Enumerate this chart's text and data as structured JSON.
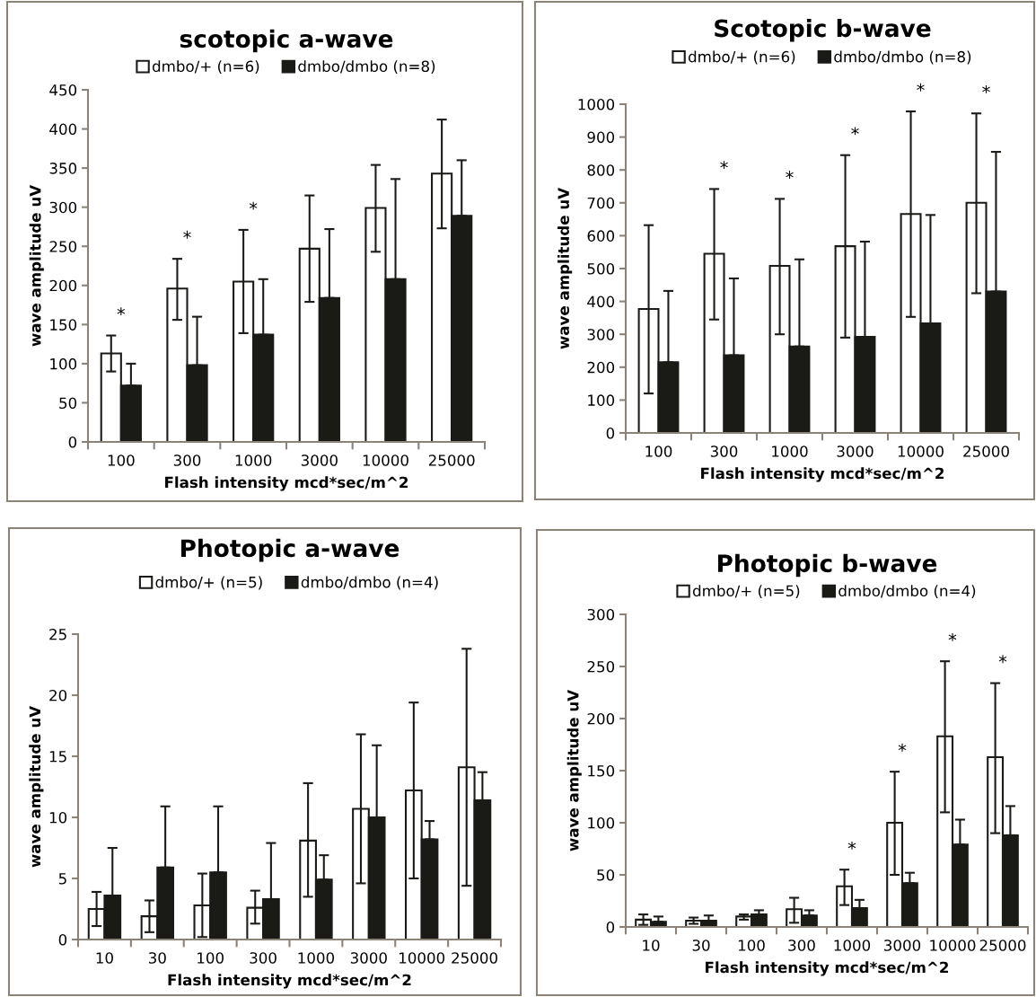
{
  "chart_data": [
    {
      "type": "bar",
      "title": "scotopic a-wave",
      "xlabel": "Flash intensity mcd*sec/m^2",
      "ylabel": "wave amplitude uV",
      "categories": [
        "100",
        "300",
        "1000",
        "3000",
        "10000",
        "25000"
      ],
      "ylim": [
        0,
        450
      ],
      "yticks": [
        0,
        50,
        100,
        150,
        200,
        250,
        300,
        350,
        400,
        450
      ],
      "grid": false,
      "legend": "top",
      "series": [
        {
          "name": "dmbo/+ (n=6)",
          "color": "#ffffff",
          "values": [
            113,
            196,
            205,
            247,
            299,
            343
          ],
          "errors": [
            [
              90,
              136
            ],
            [
              156,
              234
            ],
            [
              139,
              271
            ],
            [
              179,
              315
            ],
            [
              243,
              354
            ],
            [
              273,
              412
            ]
          ]
        },
        {
          "name": "dmbo/dmbo (n=8)",
          "color": "#1a1a17",
          "values": [
            72,
            98,
            137,
            184,
            208,
            289
          ],
          "errors": [
            [
              72,
              100
            ],
            [
              98,
              160
            ],
            [
              137,
              208
            ],
            [
              184,
              272
            ],
            [
              208,
              336
            ],
            [
              289,
              360
            ]
          ]
        }
      ],
      "annotations": [
        "*",
        "*",
        "*"
      ]
    },
    {
      "type": "bar",
      "title": "Scotopic b-wave",
      "xlabel": "Flash intensity mcd*sec/m^2",
      "ylabel": "wave amplitude uV",
      "categories": [
        "100",
        "300",
        "1000",
        "3000",
        "10000",
        "25000"
      ],
      "ylim": [
        0,
        1000
      ],
      "yticks": [
        0,
        100,
        200,
        300,
        400,
        500,
        600,
        700,
        800,
        900,
        1000
      ],
      "grid": false,
      "legend": "top",
      "series": [
        {
          "name": "dmbo/+ (n=6)",
          "color": "#ffffff",
          "values": [
            377,
            545,
            508,
            568,
            666,
            700
          ],
          "errors": [
            [
              120,
              632
            ],
            [
              345,
              742
            ],
            [
              300,
              712
            ],
            [
              290,
              845
            ],
            [
              353,
              978
            ],
            [
              425,
              972
            ]
          ]
        },
        {
          "name": "dmbo/dmbo (n=8)",
          "color": "#1a1a17",
          "values": [
            215,
            236,
            263,
            292,
            333,
            430
          ],
          "errors": [
            [
              215,
              432
            ],
            [
              236,
              470
            ],
            [
              263,
              528
            ],
            [
              292,
              582
            ],
            [
              333,
              663
            ],
            [
              430,
              855
            ]
          ]
        }
      ],
      "annotations": [
        "*",
        "*",
        "*",
        "*",
        "*"
      ]
    },
    {
      "type": "bar",
      "title": "Photopic a-wave",
      "xlabel": "Flash intensity mcd*sec/m^2",
      "ylabel": "wave amplitude uV",
      "categories": [
        "10",
        "30",
        "100",
        "300",
        "1000",
        "3000",
        "10000",
        "25000"
      ],
      "ylim": [
        0,
        25
      ],
      "yticks": [
        0,
        5,
        10,
        15,
        20,
        25
      ],
      "grid": false,
      "legend": "top",
      "series": [
        {
          "name": "dmbo/+ (n=5)",
          "color": "#ffffff",
          "values": [
            2.5,
            1.9,
            2.8,
            2.6,
            8.1,
            10.7,
            12.2,
            14.1
          ],
          "errors": [
            [
              1.1,
              3.9
            ],
            [
              0.6,
              3.2
            ],
            [
              0.2,
              5.4
            ],
            [
              1.3,
              4.0
            ],
            [
              3.5,
              12.8
            ],
            [
              4.6,
              16.8
            ],
            [
              5.0,
              19.4
            ],
            [
              4.4,
              23.8
            ]
          ]
        },
        {
          "name": "dmbo/dmbo (n=4)",
          "color": "#1a1a17",
          "values": [
            3.6,
            5.9,
            5.5,
            3.3,
            4.9,
            10.0,
            8.2,
            11.4
          ],
          "errors": [
            [
              3.6,
              7.5
            ],
            [
              5.9,
              10.9
            ],
            [
              5.5,
              10.9
            ],
            [
              3.3,
              7.9
            ],
            [
              4.9,
              6.9
            ],
            [
              10.0,
              15.9
            ],
            [
              8.2,
              9.7
            ],
            [
              11.4,
              13.7
            ]
          ]
        }
      ]
    },
    {
      "type": "bar",
      "title": "Photopic b-wave",
      "xlabel": "Flash intensity mcd*sec/m^2",
      "ylabel": "wave amplitude uV",
      "categories": [
        "10",
        "30",
        "100",
        "300",
        "1000",
        "3000",
        "10000",
        "25000"
      ],
      "ylim": [
        0,
        300
      ],
      "yticks": [
        0,
        50,
        100,
        150,
        200,
        250,
        300
      ],
      "grid": false,
      "legend": "top",
      "series": [
        {
          "name": "dmbo/+ (n=5)",
          "color": "#ffffff",
          "values": [
            7,
            6,
            10,
            17,
            39,
            100,
            183,
            163
          ],
          "errors": [
            [
              2,
              12
            ],
            [
              3,
              9
            ],
            [
              7,
              12
            ],
            [
              4,
              28
            ],
            [
              21,
              55
            ],
            [
              50,
              149
            ],
            [
              110,
              255
            ],
            [
              90,
              234
            ]
          ]
        },
        {
          "name": "dmbo/dmbo (n=4)",
          "color": "#1a1a17",
          "values": [
            5,
            6,
            12,
            11,
            18,
            42,
            79,
            88
          ],
          "errors": [
            [
              5,
              10
            ],
            [
              6,
              11
            ],
            [
              12,
              16
            ],
            [
              11,
              16
            ],
            [
              18,
              26
            ],
            [
              42,
              52
            ],
            [
              79,
              103
            ],
            [
              88,
              116
            ]
          ]
        }
      ],
      "annotations": [
        "*",
        "*",
        "*",
        "*"
      ]
    }
  ]
}
